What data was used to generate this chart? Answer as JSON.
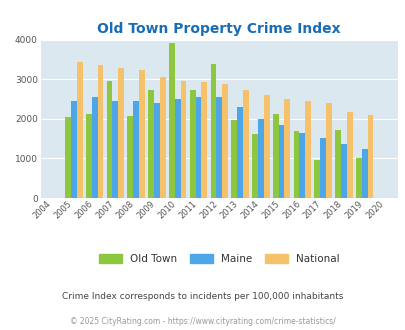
{
  "title": "Old Town Property Crime Index",
  "years": [
    2004,
    2005,
    2006,
    2007,
    2008,
    2009,
    2010,
    2011,
    2012,
    2013,
    2014,
    2015,
    2016,
    2017,
    2018,
    2019,
    2020
  ],
  "old_town": [
    0,
    2040,
    2110,
    2960,
    2060,
    2720,
    3920,
    2720,
    3390,
    1980,
    1620,
    2120,
    1700,
    970,
    1720,
    1010,
    0
  ],
  "maine": [
    0,
    2450,
    2550,
    2450,
    2460,
    2410,
    2490,
    2560,
    2560,
    2310,
    2000,
    1840,
    1640,
    1510,
    1360,
    1250,
    0
  ],
  "national": [
    0,
    3440,
    3360,
    3290,
    3220,
    3060,
    2960,
    2920,
    2870,
    2720,
    2610,
    2500,
    2460,
    2390,
    2170,
    2100,
    0
  ],
  "bar_width": 0.28,
  "colors": {
    "old_town": "#8dc63f",
    "maine": "#4da6e8",
    "national": "#f5c26b"
  },
  "ylim": [
    0,
    4000
  ],
  "yticks": [
    0,
    1000,
    2000,
    3000,
    4000
  ],
  "bg_color": "#dce8ef",
  "grid_color": "#ffffff",
  "subtitle": "Crime Index corresponds to incidents per 100,000 inhabitants",
  "footer": "© 2025 CityRating.com - https://www.cityrating.com/crime-statistics/",
  "title_color": "#1a6db5",
  "subtitle_color": "#444444",
  "footer_color": "#999999",
  "title_fontsize": 10,
  "tick_fontsize": 6,
  "ytick_fontsize": 6.5,
  "legend_fontsize": 7.5,
  "subtitle_fontsize": 6.5,
  "footer_fontsize": 5.5
}
